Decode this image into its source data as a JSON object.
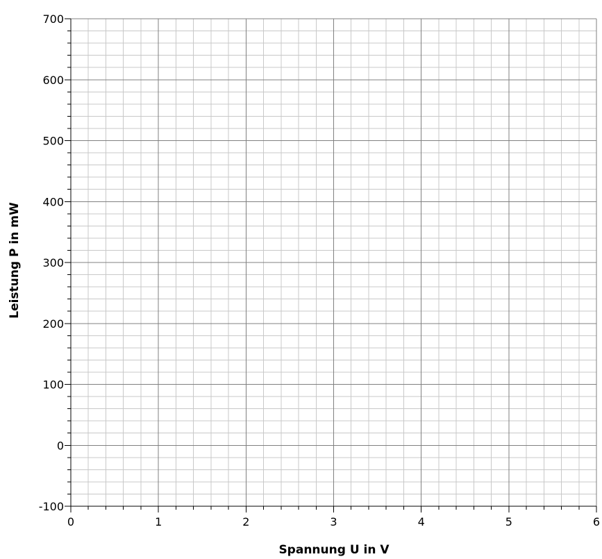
{
  "chart_data": {
    "type": "line",
    "title": "",
    "xlabel": "Spannung U in V",
    "ylabel": "Leistung P in mW",
    "xlim": [
      0,
      6
    ],
    "ylim": [
      -100,
      700
    ],
    "x_ticks": [
      "0",
      "1",
      "2",
      "3",
      "4",
      "5",
      "6"
    ],
    "y_ticks": [
      "-100",
      "0",
      "100",
      "200",
      "300",
      "400",
      "500",
      "600",
      "700"
    ],
    "x_minor_step": 0.2,
    "y_minor_step": 20,
    "grid": true,
    "series": []
  }
}
